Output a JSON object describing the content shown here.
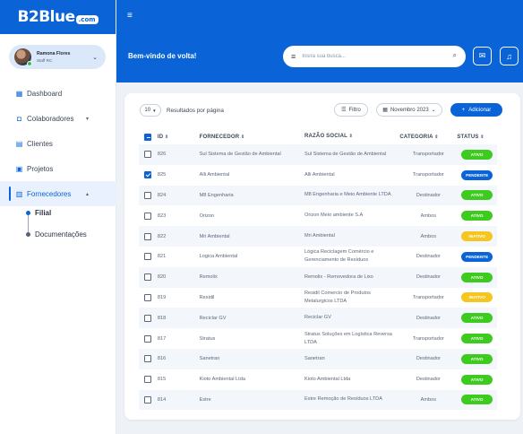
{
  "logo": {
    "main": "B2Blue",
    "suffix": ".com"
  },
  "user": {
    "name": "Ramona Flores",
    "role": "Staff RC"
  },
  "nav": [
    {
      "label": "Dashboard",
      "icon": "dashboard-icon",
      "chevron": ""
    },
    {
      "label": "Colaboradores",
      "icon": "briefcase-icon",
      "chevron": "▾"
    },
    {
      "label": "Clientes",
      "icon": "clients-icon",
      "chevron": ""
    },
    {
      "label": "Projetos",
      "icon": "projects-icon",
      "chevron": ""
    },
    {
      "label": "Fornecedores",
      "icon": "suppliers-icon",
      "chevron": "▴"
    }
  ],
  "subnav": {
    "filial": "Filial",
    "documentacoes": "Documentações"
  },
  "header": {
    "welcome": "Bem-vindo de volta!",
    "search_placeholder": "Insira sua busca..."
  },
  "toolbar": {
    "page_size": "10",
    "per_page_label": "Resultados por página",
    "filter_label": "Filtro",
    "month_label": "Novembro 2023",
    "add_label": "Adicionar"
  },
  "table": {
    "headers": {
      "id": "ID",
      "fornecedor": "FORNECEDOR",
      "razao": "RAZÃO SOCIAL",
      "categoria": "CATEGORIA",
      "status": "STATUS"
    },
    "rows": [
      {
        "checked": false,
        "id": "826",
        "fornecedor": "Sul Sistema de Gestão de Ambiental",
        "razao": "Sul Sistema de Gestão de Ambiental",
        "categoria": "Transportador",
        "status": "ATIVO"
      },
      {
        "checked": true,
        "id": "825",
        "fornecedor": "Alli Ambiental",
        "razao": "Alli Ambiental",
        "categoria": "Transportador",
        "status": "PENDENTE"
      },
      {
        "checked": false,
        "id": "824",
        "fornecedor": "M8 Engenharia",
        "razao": "M8 Engenharia e Meio Ambiente LTDA",
        "categoria": "Destinador",
        "status": "ATIVO"
      },
      {
        "checked": false,
        "id": "823",
        "fornecedor": "Orizon",
        "razao": "Orizon Meio ambiente S.A",
        "categoria": "Ambos",
        "status": "ATIVO"
      },
      {
        "checked": false,
        "id": "822",
        "fornecedor": "Mri Ambiental",
        "razao": "Mri Ambiental",
        "categoria": "Ambos",
        "status": "INATIVO"
      },
      {
        "checked": false,
        "id": "821",
        "fornecedor": "Logica Ambiental",
        "razao": "Lógica Reciclagem Comércio e Gerenciamento de Resíduos",
        "categoria": "Destinador",
        "status": "PENDENTE"
      },
      {
        "checked": false,
        "id": "820",
        "fornecedor": "Remolix",
        "razao": "Remolix - Removedora de Lixo",
        "categoria": "Destinador",
        "status": "ATIVO"
      },
      {
        "checked": false,
        "id": "819",
        "fornecedor": "Residil",
        "razao": "Residil Comercio de Produtos Metalurgicos LTDA",
        "categoria": "Transportador",
        "status": "INATIVO"
      },
      {
        "checked": false,
        "id": "818",
        "fornecedor": "Reciclar GV",
        "razao": "Reciclar GV",
        "categoria": "Destinador",
        "status": "ATIVO"
      },
      {
        "checked": false,
        "id": "817",
        "fornecedor": "Stratus",
        "razao": "Stratus Soluções em Logística Reversa LTDA",
        "categoria": "Transportador",
        "status": "ATIVO"
      },
      {
        "checked": false,
        "id": "816",
        "fornecedor": "Sanetran",
        "razao": "Sanetran",
        "categoria": "Destinador",
        "status": "ATIVO"
      },
      {
        "checked": false,
        "id": "815",
        "fornecedor": "Kioto Ambiental Ltda",
        "razao": "Kioto Ambiental Ltda",
        "categoria": "Destinador",
        "status": "ATIVO"
      },
      {
        "checked": false,
        "id": "814",
        "fornecedor": "Estre",
        "razao": "Estre Remoção de Resíduos LTDA",
        "categoria": "Ambos",
        "status": "ATIVO"
      }
    ]
  },
  "colors": {
    "primary": "#0a64d8",
    "active": "#3ecb1f",
    "pending": "#0a64d8",
    "inactive": "#f5c520"
  }
}
